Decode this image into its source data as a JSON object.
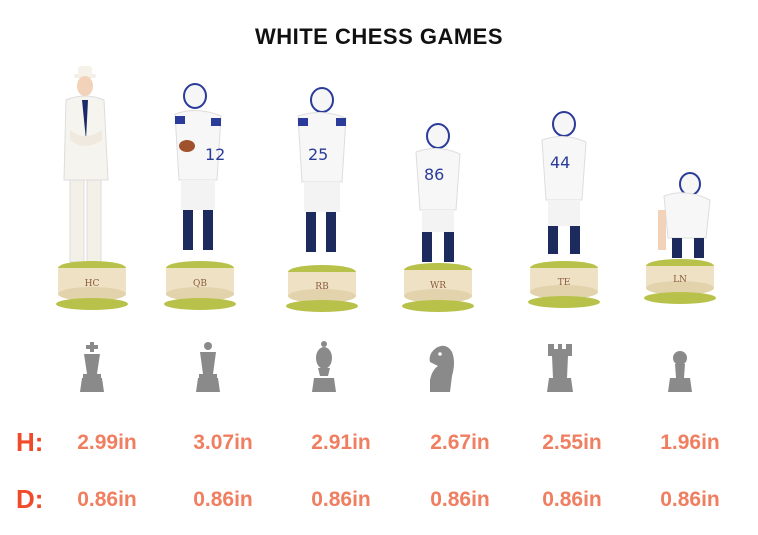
{
  "title": "WHITE CHESS GAMES",
  "row_labels": {
    "height": "H:",
    "diameter": "D:"
  },
  "pieces": [
    {
      "base_label": "HC",
      "piece_icon": "king-icon",
      "height": "2.99in",
      "diameter": "0.86in"
    },
    {
      "base_label": "QB",
      "piece_icon": "queen-icon",
      "height": "3.07in",
      "diameter": "0.86in"
    },
    {
      "base_label": "RB",
      "piece_icon": "bishop-icon",
      "height": "2.91in",
      "diameter": "0.86in"
    },
    {
      "base_label": "WR",
      "piece_icon": "knight-icon",
      "height": "2.67in",
      "diameter": "0.86in"
    },
    {
      "base_label": "TE",
      "piece_icon": "rook-icon",
      "height": "2.55in",
      "diameter": "0.86in"
    },
    {
      "base_label": "LN",
      "piece_icon": "pawn-icon",
      "height": "1.96in",
      "diameter": "0.86in"
    }
  ],
  "colors": {
    "label_red": "#f04a2a",
    "value_salmon": "#f07e60",
    "icon_gray": "#8a8a8a",
    "base_cream": "#efe2c4",
    "grass": "#b8c24a"
  }
}
